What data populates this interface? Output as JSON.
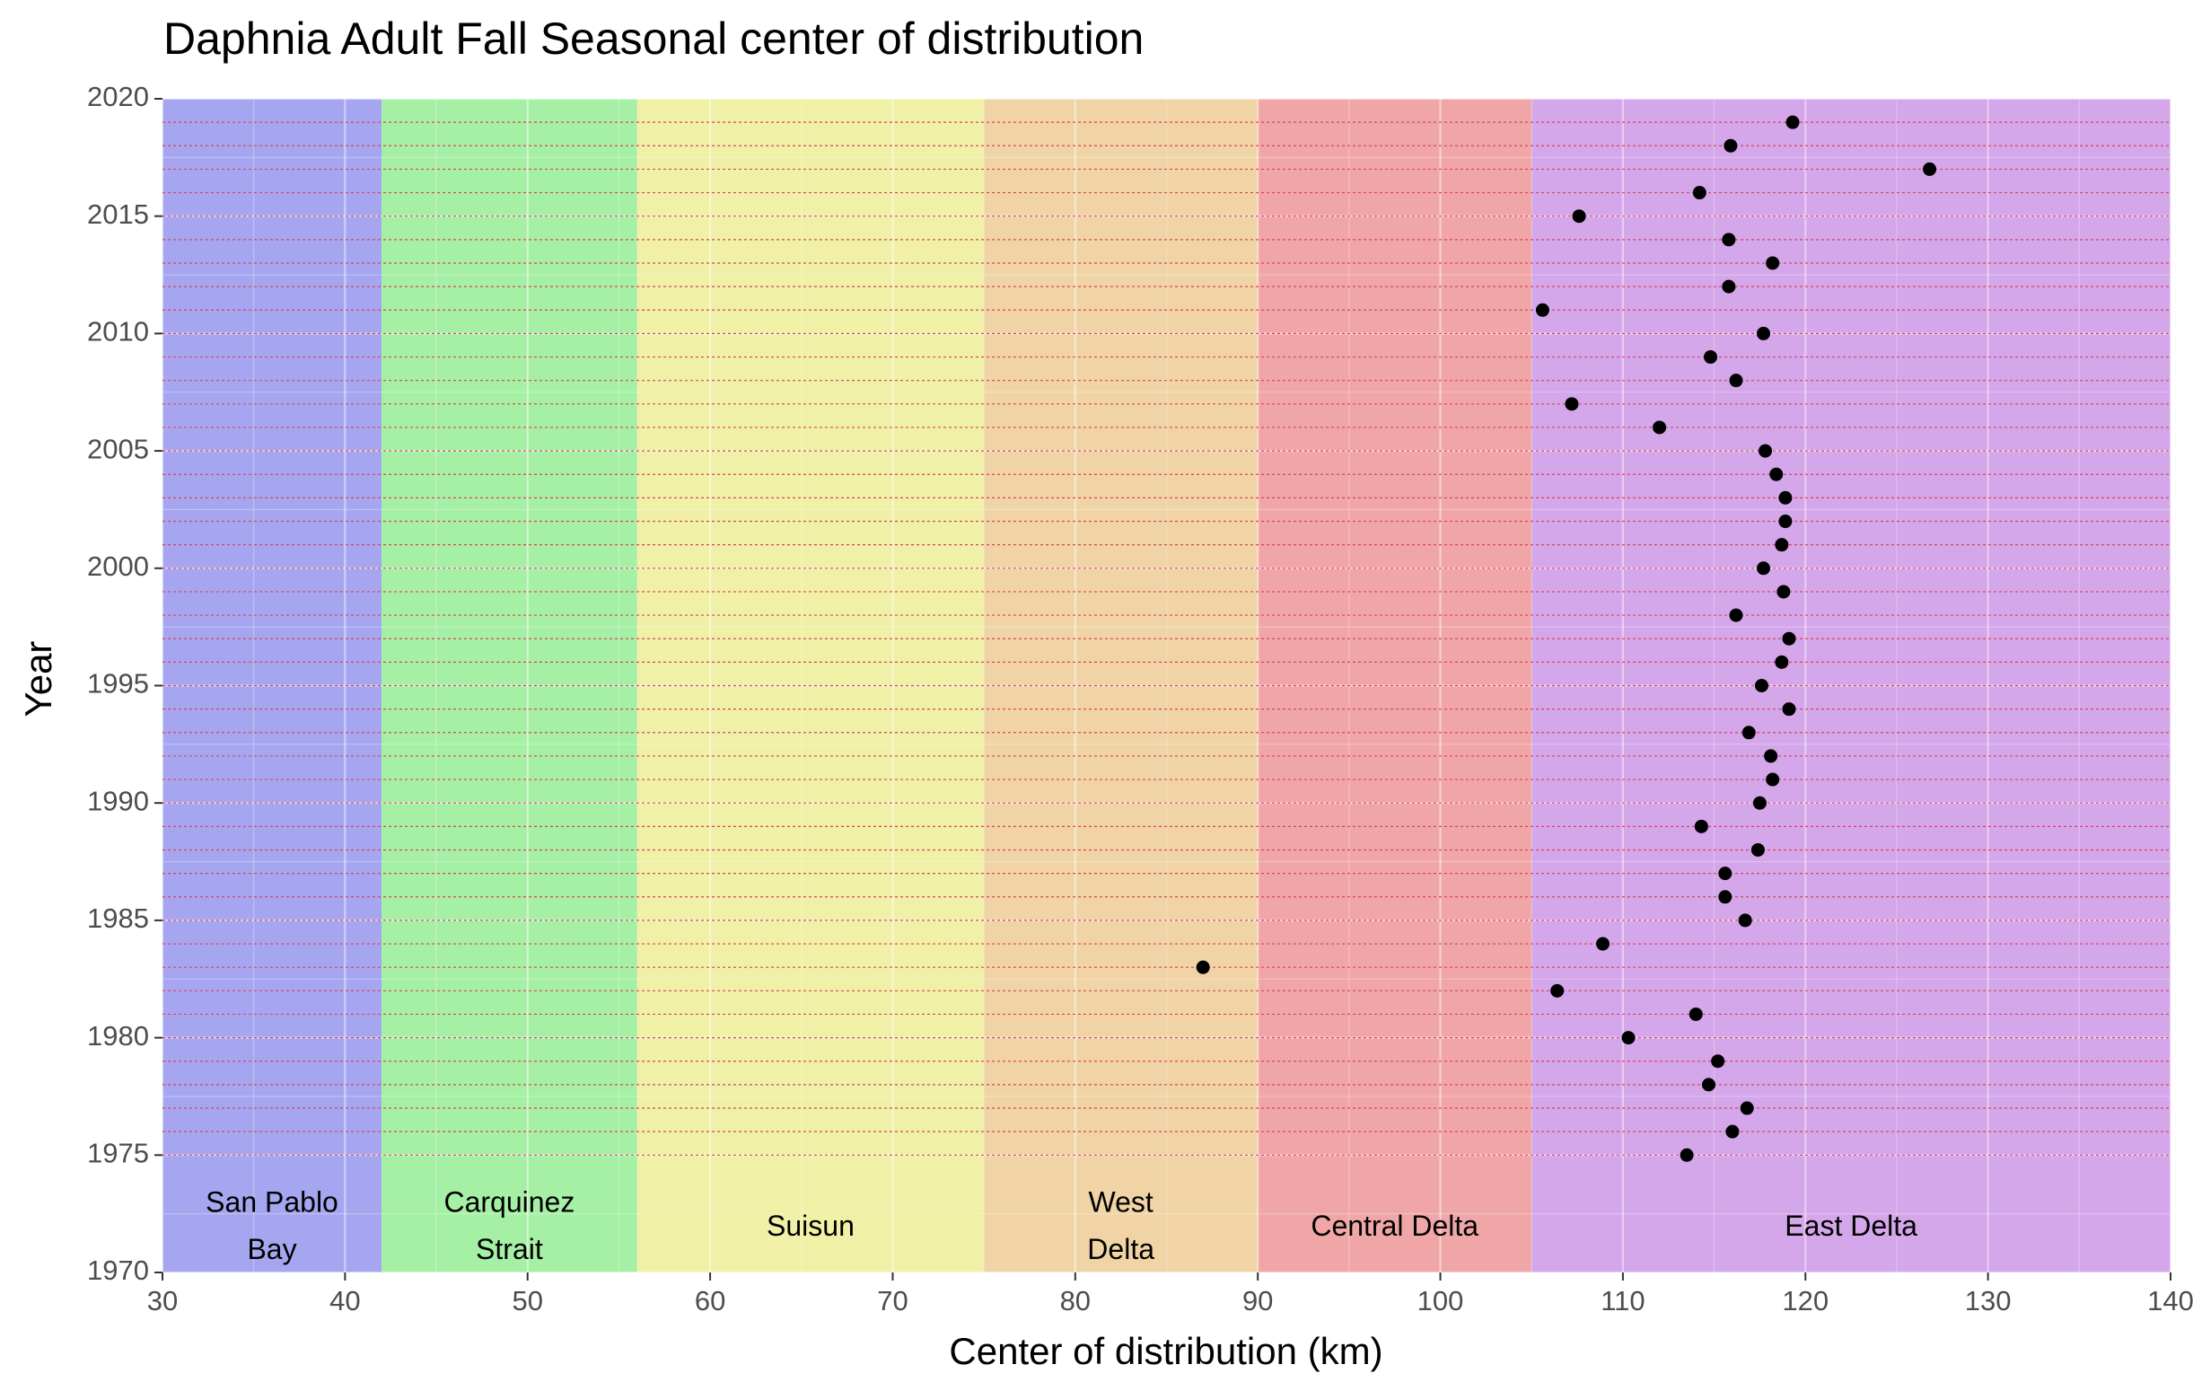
{
  "chart_data": {
    "type": "scatter",
    "title": "Daphnia Adult Fall Seasonal center of distribution",
    "xlabel": "Center of distribution (km)",
    "ylabel": "Year",
    "xlim": [
      30,
      140
    ],
    "ylim": [
      1970,
      2020
    ],
    "x_ticks": [
      30,
      40,
      50,
      60,
      70,
      80,
      90,
      100,
      110,
      120,
      130,
      140
    ],
    "y_ticks": [
      1970,
      1975,
      1980,
      1985,
      1990,
      1995,
      2000,
      2005,
      2010,
      2015,
      2020
    ],
    "grid": true,
    "regions": [
      {
        "lines": [
          "San Pablo",
          "Bay"
        ],
        "from": 30,
        "to": 42,
        "color": "#a6a6f0"
      },
      {
        "lines": [
          "Carquinez",
          "Strait"
        ],
        "from": 42,
        "to": 56,
        "color": "#a6f0a6"
      },
      {
        "lines": [
          "Suisun"
        ],
        "from": 56,
        "to": 75,
        "color": "#f0f0a6"
      },
      {
        "lines": [
          "West",
          "Delta"
        ],
        "from": 75,
        "to": 90,
        "color": "#f0d4a6"
      },
      {
        "lines": [
          "Central Delta"
        ],
        "from": 90,
        "to": 105,
        "color": "#f0a6a6"
      },
      {
        "lines": [
          "East Delta"
        ],
        "from": 105,
        "to": 140,
        "color": "#d4a6ea"
      }
    ],
    "points": [
      {
        "x": 113.5,
        "y": 1975
      },
      {
        "x": 116.0,
        "y": 1976
      },
      {
        "x": 116.8,
        "y": 1977
      },
      {
        "x": 114.7,
        "y": 1978
      },
      {
        "x": 115.2,
        "y": 1979
      },
      {
        "x": 110.3,
        "y": 1980
      },
      {
        "x": 114.0,
        "y": 1981
      },
      {
        "x": 106.4,
        "y": 1982
      },
      {
        "x": 87.0,
        "y": 1983
      },
      {
        "x": 108.9,
        "y": 1984
      },
      {
        "x": 116.7,
        "y": 1985
      },
      {
        "x": 115.6,
        "y": 1986
      },
      {
        "x": 115.6,
        "y": 1987
      },
      {
        "x": 117.4,
        "y": 1988
      },
      {
        "x": 114.3,
        "y": 1989
      },
      {
        "x": 117.5,
        "y": 1990
      },
      {
        "x": 118.2,
        "y": 1991
      },
      {
        "x": 118.1,
        "y": 1992
      },
      {
        "x": 116.9,
        "y": 1993
      },
      {
        "x": 119.1,
        "y": 1994
      },
      {
        "x": 117.6,
        "y": 1995
      },
      {
        "x": 118.7,
        "y": 1996
      },
      {
        "x": 119.1,
        "y": 1997
      },
      {
        "x": 116.2,
        "y": 1998
      },
      {
        "x": 118.8,
        "y": 1999
      },
      {
        "x": 117.7,
        "y": 2000
      },
      {
        "x": 118.7,
        "y": 2001
      },
      {
        "x": 118.9,
        "y": 2002
      },
      {
        "x": 118.9,
        "y": 2003
      },
      {
        "x": 118.4,
        "y": 2004
      },
      {
        "x": 117.8,
        "y": 2005
      },
      {
        "x": 112.0,
        "y": 2006
      },
      {
        "x": 107.2,
        "y": 2007
      },
      {
        "x": 116.2,
        "y": 2008
      },
      {
        "x": 114.8,
        "y": 2009
      },
      {
        "x": 117.7,
        "y": 2010
      },
      {
        "x": 105.6,
        "y": 2011
      },
      {
        "x": 115.8,
        "y": 2012
      },
      {
        "x": 118.2,
        "y": 2013
      },
      {
        "x": 115.8,
        "y": 2014
      },
      {
        "x": 107.6,
        "y": 2015
      },
      {
        "x": 114.2,
        "y": 2016
      },
      {
        "x": 126.8,
        "y": 2017
      },
      {
        "x": 115.9,
        "y": 2018
      },
      {
        "x": 119.3,
        "y": 2019
      }
    ]
  }
}
